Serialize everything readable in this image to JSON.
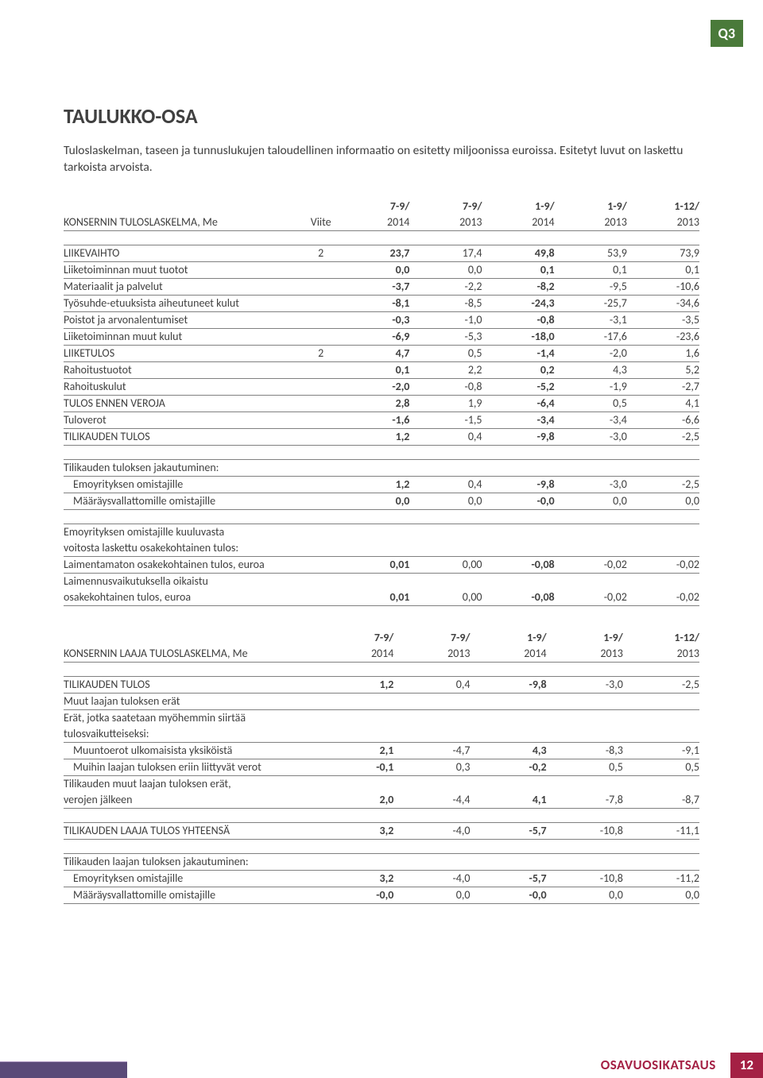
{
  "badge": "Q3",
  "title": "TAULUKKO-OSA",
  "intro": "Tuloslaskelman, taseen ja tunnuslukujen taloudellinen informaatio on esitetty miljoonissa euroissa. Esitetyt luvut on laskettu tarkoista arvoista.",
  "footer": {
    "label": "OSAVUOSIKATSAUS",
    "page": "12"
  },
  "table1": {
    "header_top": [
      "",
      "",
      "7-9/",
      "7-9/",
      "1-9/",
      "1-9/",
      "1-12/"
    ],
    "header_bot": [
      "KONSERNIN TULOSLASKELMA, Me",
      "Viite",
      "2014",
      "2013",
      "2014",
      "2013",
      "2013"
    ],
    "rows": [
      {
        "t": "spacer"
      },
      {
        "t": "line",
        "label": "LIIKEVAIHTO",
        "viite": "2",
        "v": [
          "23,7",
          "17,4",
          "49,8",
          "53,9",
          "73,9"
        ]
      },
      {
        "t": "line",
        "label": "Liiketoiminnan muut tuotot",
        "viite": "",
        "v": [
          "0,0",
          "0,0",
          "0,1",
          "0,1",
          "0,1"
        ]
      },
      {
        "t": "line",
        "label": "Materiaalit ja palvelut",
        "viite": "",
        "v": [
          "-3,7",
          "-2,2",
          "-8,2",
          "-9,5",
          "-10,6"
        ]
      },
      {
        "t": "line",
        "label": "Työsuhde-etuuksista aiheutuneet kulut",
        "viite": "",
        "v": [
          "-8,1",
          "-8,5",
          "-24,3",
          "-25,7",
          "-34,6"
        ]
      },
      {
        "t": "line",
        "label": "Poistot ja arvonalentumiset",
        "viite": "",
        "v": [
          "-0,3",
          "-1,0",
          "-0,8",
          "-3,1",
          "-3,5"
        ]
      },
      {
        "t": "line",
        "label": "Liiketoiminnan muut kulut",
        "viite": "",
        "v": [
          "-6,9",
          "-5,3",
          "-18,0",
          "-17,6",
          "-23,6"
        ]
      },
      {
        "t": "line",
        "label": "LIIKETULOS",
        "viite": "2",
        "v": [
          "4,7",
          "0,5",
          "-1,4",
          "-2,0",
          "1,6"
        ]
      },
      {
        "t": "line",
        "label": "Rahoitustuotot",
        "viite": "",
        "v": [
          "0,1",
          "2,2",
          "0,2",
          "4,3",
          "5,2"
        ]
      },
      {
        "t": "line",
        "label": "Rahoituskulut",
        "viite": "",
        "v": [
          "-2,0",
          "-0,8",
          "-5,2",
          "-1,9",
          "-2,7"
        ]
      },
      {
        "t": "line",
        "label": "TULOS ENNEN VEROJA",
        "viite": "",
        "v": [
          "2,8",
          "1,9",
          "-6,4",
          "0,5",
          "4,1"
        ]
      },
      {
        "t": "line",
        "label": "Tuloverot",
        "viite": "",
        "v": [
          "-1,6",
          "-1,5",
          "-3,4",
          "-3,4",
          "-6,6"
        ]
      },
      {
        "t": "line",
        "label": "TILIKAUDEN TULOS",
        "viite": "",
        "v": [
          "1,2",
          "0,4",
          "-9,8",
          "-3,0",
          "-2,5"
        ]
      },
      {
        "t": "spacer"
      },
      {
        "t": "line",
        "label": "Tilikauden tuloksen jakautuminen:",
        "viite": "",
        "v": [
          "",
          "",
          "",
          "",
          ""
        ]
      },
      {
        "t": "line",
        "label": "Emoyrityksen omistajille",
        "indent": true,
        "viite": "",
        "v": [
          "1,2",
          "0,4",
          "-9,8",
          "-3,0",
          "-2,5"
        ]
      },
      {
        "t": "line",
        "label": "Määräysvallattomille omistajille",
        "indent": true,
        "viite": "",
        "v": [
          "0,0",
          "0,0",
          "-0,0",
          "0,0",
          "0,0"
        ]
      },
      {
        "t": "spacer"
      },
      {
        "t": "plain",
        "label": "Emoyrityksen omistajille kuuluvasta",
        "viite": "",
        "v": [
          "",
          "",
          "",
          "",
          ""
        ]
      },
      {
        "t": "line",
        "label": "voitosta laskettu osakekohtainen tulos:",
        "viite": "",
        "v": [
          "",
          "",
          "",
          "",
          ""
        ]
      },
      {
        "t": "line",
        "label": "Laimentamaton osakekohtainen tulos, euroa",
        "viite": "",
        "v": [
          "0,01",
          "0,00",
          "-0,08",
          "-0,02",
          "-0,02"
        ]
      },
      {
        "t": "plain",
        "label": "Laimennusvaikutuksella oikaistu",
        "viite": "",
        "v": [
          "",
          "",
          "",
          "",
          ""
        ]
      },
      {
        "t": "line",
        "label": "osakekohtainen tulos, euroa",
        "viite": "",
        "v": [
          "0,01",
          "0,00",
          "-0,08",
          "-0,02",
          "-0,02"
        ]
      }
    ]
  },
  "table2": {
    "header_top": [
      "",
      "7-9/",
      "7-9/",
      "1-9/",
      "1-9/",
      "1-12/"
    ],
    "header_bot": [
      "KONSERNIN LAAJA TULOSLASKELMA, Me",
      "2014",
      "2013",
      "2014",
      "2013",
      "2013"
    ],
    "rows": [
      {
        "t": "spacer"
      },
      {
        "t": "line",
        "label": "TILIKAUDEN TULOS",
        "v": [
          "1,2",
          "0,4",
          "-9,8",
          "-3,0",
          "-2,5"
        ]
      },
      {
        "t": "line",
        "label": "Muut laajan tuloksen erät",
        "v": [
          "",
          "",
          "",
          "",
          ""
        ]
      },
      {
        "t": "plain",
        "label": "Erät, jotka saatetaan myöhemmin siirtää",
        "v": [
          "",
          "",
          "",
          "",
          ""
        ]
      },
      {
        "t": "line",
        "label": "tulosvaikutteiseksi:",
        "v": [
          "",
          "",
          "",
          "",
          ""
        ]
      },
      {
        "t": "line",
        "label": "Muuntoerot ulkomaisista yksiköistä",
        "indent": true,
        "v": [
          "2,1",
          "-4,7",
          "4,3",
          "-8,3",
          "-9,1"
        ]
      },
      {
        "t": "line",
        "label": "Muihin laajan tuloksen eriin liittyvät verot",
        "indent": true,
        "v": [
          "-0,1",
          "0,3",
          "-0,2",
          "0,5",
          "0,5"
        ]
      },
      {
        "t": "plain",
        "label": "Tilikauden muut laajan tuloksen erät,",
        "v": [
          "",
          "",
          "",
          "",
          ""
        ]
      },
      {
        "t": "line",
        "label": "verojen jälkeen",
        "v": [
          "2,0",
          "-4,4",
          "4,1",
          "-7,8",
          "-8,7"
        ]
      },
      {
        "t": "spacer"
      },
      {
        "t": "line",
        "label": "TILIKAUDEN LAAJA TULOS YHTEENSÄ",
        "v": [
          "3,2",
          "-4,0",
          "-5,7",
          "-10,8",
          "-11,1"
        ]
      },
      {
        "t": "spacer"
      },
      {
        "t": "line",
        "label": "Tilikauden laajan tuloksen jakautuminen:",
        "v": [
          "",
          "",
          "",
          "",
          ""
        ]
      },
      {
        "t": "line",
        "label": "Emoyrityksen omistajille",
        "indent": true,
        "v": [
          "3,2",
          "-4,0",
          "-5,7",
          "-10,8",
          "-11,2"
        ]
      },
      {
        "t": "line",
        "label": "Määräysvallattomille omistajille",
        "indent": true,
        "v": [
          "-0,0",
          "0,0",
          "-0,0",
          "0,0",
          "0,0"
        ]
      }
    ]
  }
}
